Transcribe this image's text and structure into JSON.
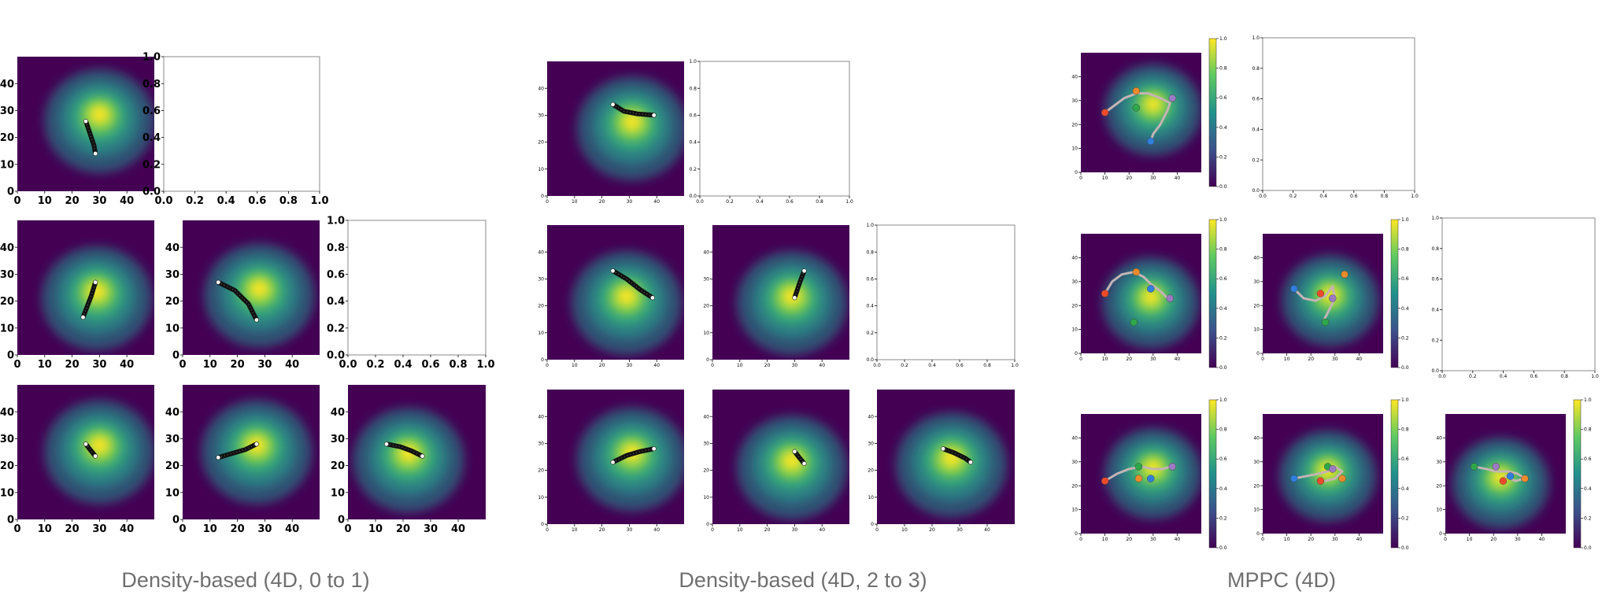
{
  "captions": {
    "group1": "Density-based (4D, 0 to 1)",
    "group2": "Density-based (4D, 2 to 3)",
    "group3": "MPPC (4D)"
  },
  "chart_data": [
    {
      "type": "heatmap",
      "group": "Density-based (4D, 0 to 1)",
      "grid": "3x3 lower-triangular pairwise panels",
      "colormap": "viridis",
      "xlim": [
        0,
        50
      ],
      "ylim": [
        0,
        50
      ],
      "xticks": [
        0,
        10,
        20,
        30,
        40
      ],
      "yticks": [
        0,
        10,
        20,
        30,
        40
      ],
      "empty_axes_ticks": [
        0.0,
        0.2,
        0.4,
        0.6,
        0.8,
        1.0
      ],
      "panels": [
        {
          "row": 0,
          "col": 0,
          "peak": [
            30,
            29
          ],
          "path": [
            [
              25,
              26
            ],
            [
              26,
              23
            ],
            [
              27,
              20
            ],
            [
              28,
              17
            ],
            [
              28.5,
              14
            ]
          ]
        },
        {
          "row": 0,
          "col": 1,
          "empty": true
        },
        {
          "row": 1,
          "col": 0,
          "peak": [
            29,
            24
          ],
          "path": [
            [
              24,
              14
            ],
            [
              25.5,
              18
            ],
            [
              27,
              22
            ],
            [
              28.5,
              27
            ]
          ]
        },
        {
          "row": 1,
          "col": 1,
          "peak": [
            28,
            25
          ],
          "path": [
            [
              13,
              27
            ],
            [
              19,
              24
            ],
            [
              24,
              19
            ],
            [
              27,
              13
            ]
          ]
        },
        {
          "row": 1,
          "col": 2,
          "empty": true
        },
        {
          "row": 2,
          "col": 0,
          "peak": [
            30,
            28
          ],
          "path": [
            [
              25,
              28
            ],
            [
              26.5,
              26
            ],
            [
              28.5,
              23.5
            ]
          ]
        },
        {
          "row": 2,
          "col": 1,
          "peak": [
            27,
            28
          ],
          "path": [
            [
              13,
              23
            ],
            [
              18,
              24.5
            ],
            [
              23,
              26
            ],
            [
              27,
              28
            ]
          ]
        },
        {
          "row": 2,
          "col": 2,
          "peak": [
            22,
            25
          ],
          "path": [
            [
              14,
              28
            ],
            [
              19,
              27
            ],
            [
              23,
              25.5
            ],
            [
              27,
              23.5
            ]
          ]
        }
      ]
    },
    {
      "type": "heatmap",
      "group": "Density-based (4D, 2 to 3)",
      "grid": "3x3 lower-triangular pairwise panels",
      "colormap": "viridis",
      "xlim": [
        0,
        50
      ],
      "ylim": [
        0,
        50
      ],
      "xticks": [
        0,
        10,
        20,
        30,
        40
      ],
      "yticks": [
        0,
        10,
        20,
        30,
        40
      ],
      "empty_axes_ticks": [
        0.0,
        0.2,
        0.4,
        0.6,
        0.8,
        1.0
      ],
      "panels": [
        {
          "row": 0,
          "col": 0,
          "peak": [
            31,
            28
          ],
          "path": [
            [
              24,
              34
            ],
            [
              28,
              31.5
            ],
            [
              33,
              30.5
            ],
            [
              39,
              30
            ]
          ]
        },
        {
          "row": 0,
          "col": 1,
          "empty": true
        },
        {
          "row": 1,
          "col": 0,
          "peak": [
            29,
            24
          ],
          "path": [
            [
              24,
              33
            ],
            [
              29,
              30
            ],
            [
              34,
              26
            ],
            [
              38.5,
              23
            ]
          ]
        },
        {
          "row": 1,
          "col": 1,
          "peak": [
            29,
            24
          ],
          "path": [
            [
              30,
              23
            ],
            [
              31,
              26
            ],
            [
              32,
              29
            ],
            [
              33.5,
              33
            ]
          ]
        },
        {
          "row": 1,
          "col": 2,
          "empty": true
        },
        {
          "row": 2,
          "col": 0,
          "peak": [
            31,
            27
          ],
          "path": [
            [
              24,
              23
            ],
            [
              29,
              25.5
            ],
            [
              34,
              27
            ],
            [
              39,
              28
            ]
          ]
        },
        {
          "row": 2,
          "col": 1,
          "peak": [
            29,
            24
          ],
          "path": [
            [
              30,
              27
            ],
            [
              31.5,
              25
            ],
            [
              33.5,
              22.5
            ]
          ]
        },
        {
          "row": 2,
          "col": 2,
          "peak": [
            27,
            25
          ],
          "path": [
            [
              24,
              28
            ],
            [
              28,
              26.5
            ],
            [
              32,
              24.5
            ],
            [
              34,
              23
            ]
          ]
        }
      ]
    },
    {
      "type": "heatmap",
      "group": "MPPC (4D)",
      "grid": "3x3 lower-triangular pairwise panels with colorbars",
      "colormap": "viridis",
      "xlim": [
        0,
        50
      ],
      "ylim": [
        0,
        50
      ],
      "xticks": [
        0,
        10,
        20,
        30,
        40
      ],
      "yticks": [
        0,
        10,
        20,
        30,
        40
      ],
      "colorbar_ticks": [
        0.0,
        0.2,
        0.4,
        0.6,
        0.8,
        1.0
      ],
      "empty_axes_ticks": [
        0.0,
        0.2,
        0.4,
        0.6,
        0.8,
        1.0
      ],
      "point_colors": [
        "#ef4b2a",
        "#ef8a2c",
        "#2ea84a",
        "#9c7bc4",
        "#2f7fde"
      ],
      "panels": [
        {
          "row": 0,
          "col": 0,
          "peak": [
            30,
            29
          ],
          "path": [
            [
              10,
              25
            ],
            [
              14,
              28
            ],
            [
              18,
              31
            ],
            [
              23,
              33
            ],
            [
              28,
              33
            ],
            [
              33,
              31
            ],
            [
              37,
              29
            ],
            [
              36,
              26
            ],
            [
              33,
              20
            ],
            [
              30,
              16
            ],
            [
              29,
              13
            ]
          ],
          "points": [
            [
              10,
              25
            ],
            [
              23,
              34
            ],
            [
              23,
              27
            ],
            [
              38,
              31
            ],
            [
              29,
              13
            ]
          ]
        },
        {
          "row": 0,
          "col": 1,
          "empty": true
        },
        {
          "row": 1,
          "col": 0,
          "peak": [
            29,
            24
          ],
          "path": [
            [
              10,
              25
            ],
            [
              13,
              30
            ],
            [
              17,
              33
            ],
            [
              22,
              34
            ],
            [
              26,
              32
            ],
            [
              29,
              29
            ],
            [
              33,
              26
            ],
            [
              36,
              23
            ]
          ],
          "points": [
            [
              10,
              25
            ],
            [
              23,
              34
            ],
            [
              22,
              13
            ],
            [
              37,
              23
            ],
            [
              29,
              27
            ]
          ]
        },
        {
          "row": 1,
          "col": 1,
          "peak": [
            28,
            25
          ],
          "path": [
            [
              13,
              27
            ],
            [
              17,
              23
            ],
            [
              22,
              22
            ],
            [
              26,
              24
            ],
            [
              29,
              28
            ],
            [
              30,
              23
            ],
            [
              27,
              17
            ],
            [
              25,
              13
            ]
          ],
          "points": [
            [
              24,
              25
            ],
            [
              34,
              33
            ],
            [
              26,
              13
            ],
            [
              29,
              23
            ],
            [
              13,
              27
            ]
          ]
        },
        {
          "row": 1,
          "col": 2,
          "empty": true
        },
        {
          "row": 2,
          "col": 0,
          "peak": [
            30,
            28
          ],
          "path": [
            [
              10,
              22
            ],
            [
              15,
              25
            ],
            [
              20,
              27
            ],
            [
              25,
              28
            ],
            [
              30,
              27
            ],
            [
              34,
              27
            ],
            [
              37,
              28
            ]
          ],
          "points": [
            [
              10,
              22
            ],
            [
              24,
              23
            ],
            [
              24,
              28
            ],
            [
              38,
              28
            ],
            [
              29,
              23
            ]
          ]
        },
        {
          "row": 2,
          "col": 1,
          "peak": [
            27,
            27
          ],
          "path": [
            [
              13,
              23
            ],
            [
              18,
              24
            ],
            [
              23,
              25
            ],
            [
              27,
              26
            ],
            [
              30,
              28
            ],
            [
              33,
              26
            ],
            [
              30,
              23
            ],
            [
              26,
              22
            ]
          ],
          "points": [
            [
              24,
              22
            ],
            [
              33,
              23
            ],
            [
              27,
              28
            ],
            [
              29,
              27
            ],
            [
              13,
              23
            ]
          ]
        },
        {
          "row": 2,
          "col": 2,
          "peak": [
            23,
            24
          ],
          "path": [
            [
              12,
              28
            ],
            [
              17,
              27
            ],
            [
              21,
              26
            ],
            [
              26,
              26
            ],
            [
              30,
              25
            ],
            [
              33,
              23
            ],
            [
              29,
              22
            ],
            [
              25,
              24
            ]
          ],
          "points": [
            [
              24,
              22
            ],
            [
              33,
              23
            ],
            [
              12,
              28
            ],
            [
              21,
              28
            ],
            [
              27,
              24
            ]
          ]
        }
      ]
    }
  ]
}
